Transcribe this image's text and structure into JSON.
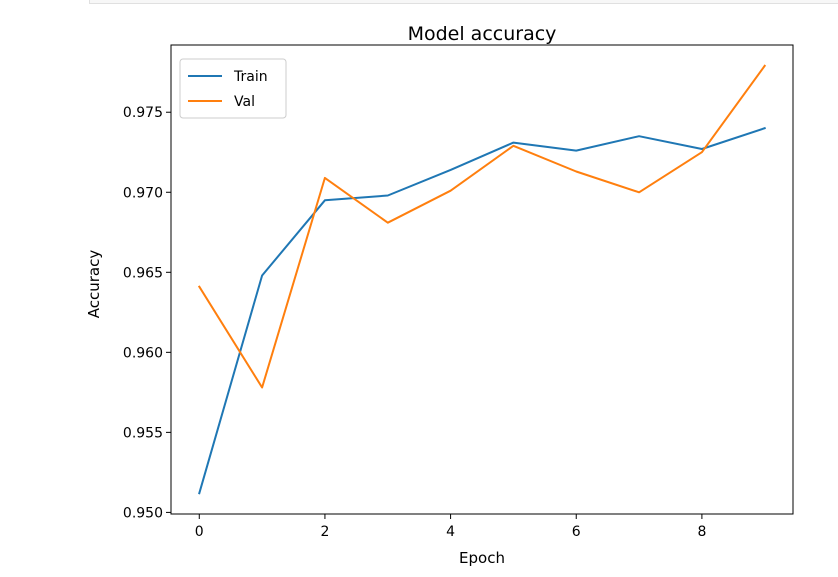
{
  "chart_data": {
    "type": "line",
    "title": "Model accuracy",
    "xlabel": "Epoch",
    "ylabel": "Accuracy",
    "x": [
      0,
      1,
      2,
      3,
      4,
      5,
      6,
      7,
      8,
      9
    ],
    "series": [
      {
        "name": "Train",
        "color": "#1f77b4",
        "values": [
          0.9512,
          0.9648,
          0.9695,
          0.9698,
          0.9714,
          0.9731,
          0.9726,
          0.9735,
          0.9727,
          0.974
        ]
      },
      {
        "name": "Val",
        "color": "#ff7f0e",
        "values": [
          0.9641,
          0.9578,
          0.9709,
          0.9681,
          0.9701,
          0.9729,
          0.9713,
          0.97,
          0.9725,
          0.9779
        ]
      }
    ],
    "xticks": [
      0,
      2,
      4,
      6,
      8
    ],
    "xtick_labels": [
      "0",
      "2",
      "4",
      "6",
      "8"
    ],
    "yticks": [
      0.95,
      0.955,
      0.96,
      0.965,
      0.97,
      0.975
    ],
    "ytick_labels": [
      "0.950",
      "0.955",
      "0.960",
      "0.965",
      "0.970",
      "0.975"
    ],
    "xlim": [
      -0.45,
      9.45
    ],
    "ylim": [
      0.9499,
      0.9792
    ],
    "legend_position": "top-left",
    "grid": false
  }
}
